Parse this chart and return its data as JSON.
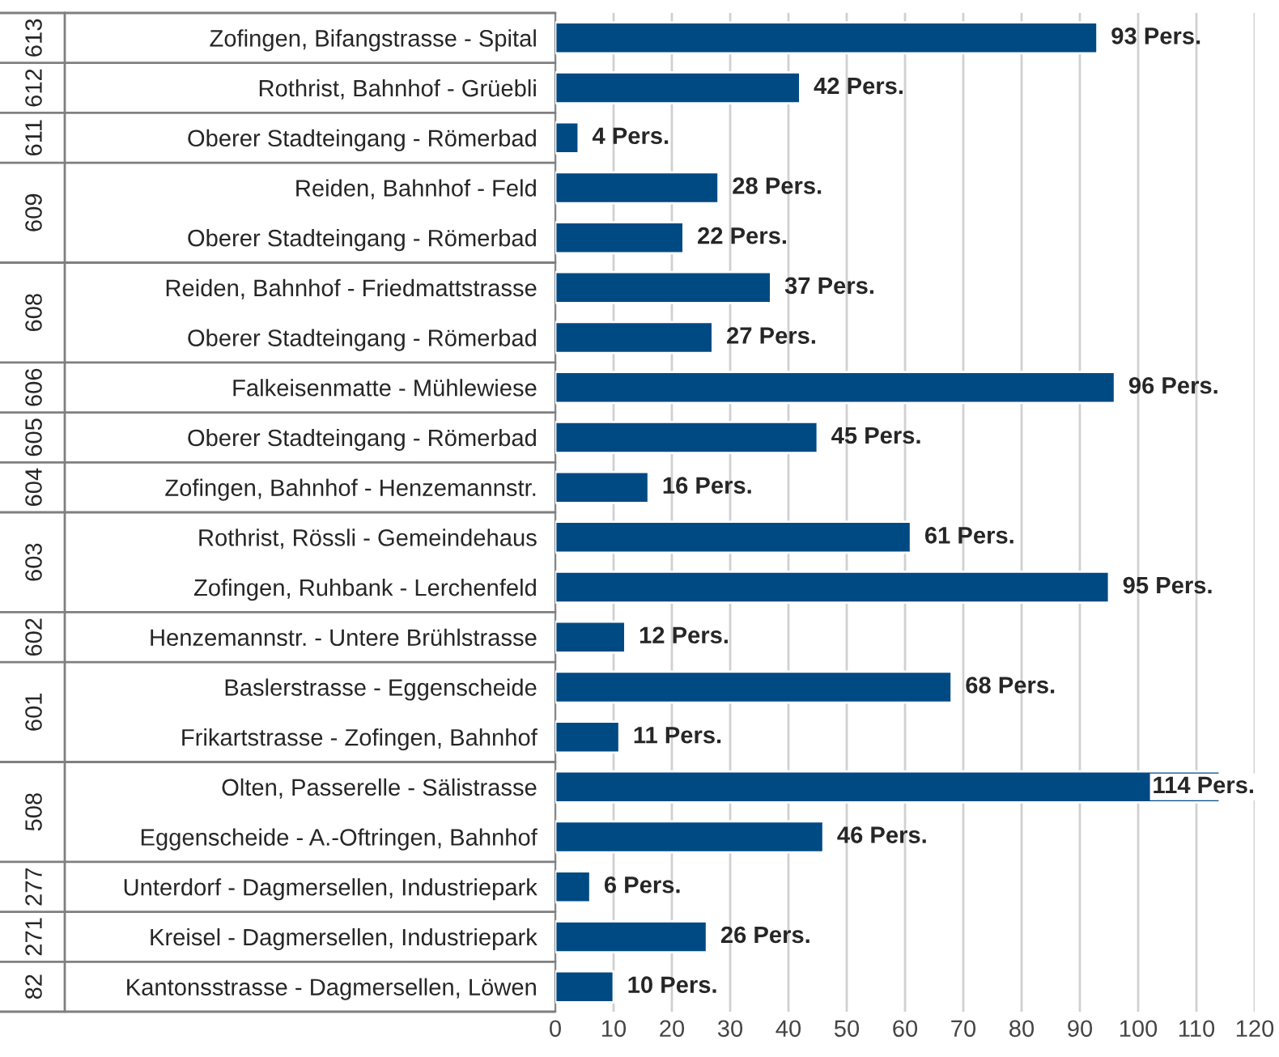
{
  "chart_data": {
    "type": "bar",
    "orientation": "horizontal",
    "categories": [
      "Zofingen, Bifangstrasse - Spital",
      "Rothrist, Bahnhof - Grüebli",
      "Oberer Stadteingang - Römerbad",
      "Reiden, Bahnhof - Feld",
      "Oberer Stadteingang - Römerbad",
      "Reiden, Bahnhof - Friedmattstrasse",
      "Oberer Stadteingang - Römerbad",
      "Falkeisenmatte - Mühlewiese",
      "Oberer Stadteingang - Römerbad",
      "Zofingen, Bahnhof - Henzemannstr.",
      "Rothrist, Rössli - Gemeindehaus",
      "Zofingen, Ruhbank - Lerchenfeld",
      "Henzemannstr. - Untere Brühlstrasse",
      "Baslerstrasse - Eggenscheide",
      "Frikartstrasse - Zofingen, Bahnhof",
      "Olten, Passerelle - Sälistrasse",
      "Eggenscheide - A.-Oftringen, Bahnhof",
      "Unterdorf - Dagmersellen, Industriepark",
      "Kreisel - Dagmersellen, Industriepark",
      "Kantonsstrasse - Dagmersellen, Löwen"
    ],
    "values": [
      93,
      42,
      4,
      28,
      22,
      37,
      27,
      96,
      45,
      16,
      61,
      95,
      12,
      68,
      11,
      114,
      46,
      6,
      26,
      10
    ],
    "value_labels": [
      "93 Pers.",
      "42 Pers.",
      "4 Pers.",
      "28 Pers.",
      "22 Pers.",
      "37 Pers.",
      "27 Pers.",
      "96 Pers.",
      "45 Pers.",
      "16 Pers.",
      "61 Pers.",
      "95 Pers.",
      "12 Pers.",
      "68 Pers.",
      "11 Pers.",
      "114 Pers.",
      "46 Pers.",
      "6 Pers.",
      "26 Pers.",
      "10 Pers."
    ],
    "color": "#004a84",
    "xlim": [
      0,
      120
    ],
    "xticks": [
      0,
      10,
      20,
      30,
      40,
      50,
      60,
      70,
      80,
      90,
      100,
      110,
      120
    ],
    "grid": "x",
    "y2_categories": [
      "613",
      "612",
      "611",
      "609",
      null,
      "608",
      null,
      "606",
      "605",
      "604",
      "603",
      null,
      "602",
      "601",
      null,
      "508",
      null,
      "277",
      "271",
      "82"
    ]
  }
}
